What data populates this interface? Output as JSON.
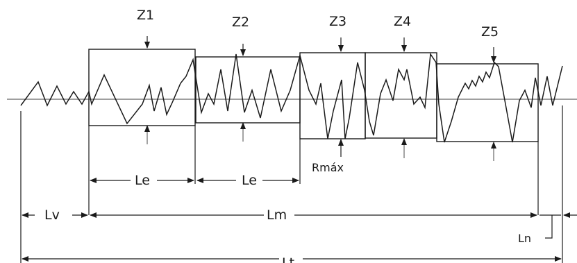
{
  "labels": {
    "z1": "Z1",
    "z2": "Z2",
    "z3": "Z3",
    "z4": "Z4",
    "z5": "Z5",
    "le1": "Le",
    "le2": "Le",
    "rmax": "Rmáx",
    "lv": "Lv",
    "lm": "Lm",
    "ln": "Ln",
    "lt": "Lt"
  },
  "colors": {
    "line": "#1a1a1a",
    "background": "#ffffff"
  }
}
